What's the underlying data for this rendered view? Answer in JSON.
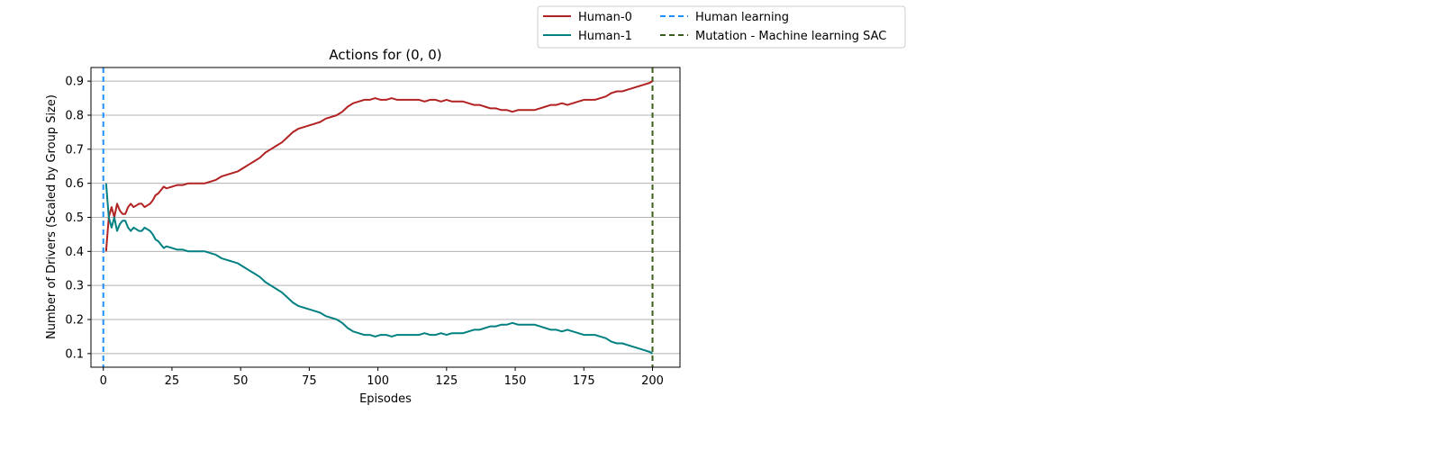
{
  "chart_data": {
    "type": "line",
    "title": "Actions for (0, 0)",
    "xlabel": "Episodes",
    "ylabel": "Number of Drivers (Scaled by Group Size)",
    "xlim": [
      -4.5,
      210
    ],
    "ylim": [
      0.06,
      0.94
    ],
    "xticks": [
      0,
      25,
      50,
      75,
      100,
      125,
      150,
      175,
      200
    ],
    "yticks": [
      0.1,
      0.2,
      0.3,
      0.4,
      0.5,
      0.6,
      0.7,
      0.8,
      0.9
    ],
    "grid": "horizontal",
    "legend_position": "above-right",
    "series": [
      {
        "name": "Human-0",
        "color": "#b22222",
        "style": "solid",
        "x": [
          1,
          2,
          3,
          4,
          5,
          6,
          7,
          8,
          9,
          10,
          11,
          12,
          13,
          14,
          15,
          16,
          17,
          18,
          19,
          20,
          21,
          22,
          23,
          25,
          27,
          29,
          31,
          33,
          35,
          37,
          39,
          41,
          43,
          45,
          47,
          49,
          51,
          53,
          55,
          57,
          59,
          61,
          63,
          65,
          67,
          69,
          71,
          73,
          75,
          77,
          79,
          81,
          83,
          85,
          87,
          89,
          91,
          93,
          95,
          97,
          99,
          101,
          103,
          105,
          107,
          109,
          111,
          113,
          115,
          117,
          119,
          121,
          123,
          125,
          127,
          129,
          131,
          133,
          135,
          137,
          139,
          141,
          143,
          145,
          147,
          149,
          151,
          153,
          155,
          157,
          159,
          161,
          163,
          165,
          167,
          169,
          171,
          173,
          175,
          177,
          179,
          181,
          183,
          185,
          187,
          189,
          191,
          193,
          195,
          197,
          199,
          200
        ],
        "y": [
          0.4,
          0.5,
          0.53,
          0.5,
          0.54,
          0.52,
          0.51,
          0.51,
          0.53,
          0.54,
          0.53,
          0.535,
          0.54,
          0.54,
          0.53,
          0.535,
          0.54,
          0.55,
          0.565,
          0.57,
          0.58,
          0.59,
          0.585,
          0.59,
          0.595,
          0.595,
          0.6,
          0.6,
          0.6,
          0.6,
          0.605,
          0.61,
          0.62,
          0.625,
          0.63,
          0.635,
          0.645,
          0.655,
          0.665,
          0.675,
          0.69,
          0.7,
          0.71,
          0.72,
          0.735,
          0.75,
          0.76,
          0.765,
          0.77,
          0.775,
          0.78,
          0.79,
          0.795,
          0.8,
          0.81,
          0.825,
          0.835,
          0.84,
          0.845,
          0.845,
          0.85,
          0.845,
          0.845,
          0.85,
          0.845,
          0.845,
          0.845,
          0.845,
          0.845,
          0.84,
          0.845,
          0.845,
          0.84,
          0.845,
          0.84,
          0.84,
          0.84,
          0.835,
          0.83,
          0.83,
          0.825,
          0.82,
          0.82,
          0.815,
          0.815,
          0.81,
          0.815,
          0.815,
          0.815,
          0.815,
          0.82,
          0.825,
          0.83,
          0.83,
          0.835,
          0.83,
          0.835,
          0.84,
          0.845,
          0.845,
          0.845,
          0.85,
          0.855,
          0.865,
          0.87,
          0.87,
          0.875,
          0.88,
          0.885,
          0.89,
          0.895,
          0.9
        ]
      },
      {
        "name": "Human-1",
        "color": "#008080",
        "style": "solid",
        "x": [
          1,
          2,
          3,
          4,
          5,
          6,
          7,
          8,
          9,
          10,
          11,
          12,
          13,
          14,
          15,
          16,
          17,
          18,
          19,
          20,
          21,
          22,
          23,
          25,
          27,
          29,
          31,
          33,
          35,
          37,
          39,
          41,
          43,
          45,
          47,
          49,
          51,
          53,
          55,
          57,
          59,
          61,
          63,
          65,
          67,
          69,
          71,
          73,
          75,
          77,
          79,
          81,
          83,
          85,
          87,
          89,
          91,
          93,
          95,
          97,
          99,
          101,
          103,
          105,
          107,
          109,
          111,
          113,
          115,
          117,
          119,
          121,
          123,
          125,
          127,
          129,
          131,
          133,
          135,
          137,
          139,
          141,
          143,
          145,
          147,
          149,
          151,
          153,
          155,
          157,
          159,
          161,
          163,
          165,
          167,
          169,
          171,
          173,
          175,
          177,
          179,
          181,
          183,
          185,
          187,
          189,
          191,
          193,
          195,
          197,
          199,
          200
        ],
        "y": [
          0.6,
          0.5,
          0.47,
          0.5,
          0.46,
          0.48,
          0.49,
          0.49,
          0.47,
          0.46,
          0.47,
          0.465,
          0.46,
          0.46,
          0.47,
          0.465,
          0.46,
          0.45,
          0.435,
          0.43,
          0.42,
          0.41,
          0.415,
          0.41,
          0.405,
          0.405,
          0.4,
          0.4,
          0.4,
          0.4,
          0.395,
          0.39,
          0.38,
          0.375,
          0.37,
          0.365,
          0.355,
          0.345,
          0.335,
          0.325,
          0.31,
          0.3,
          0.29,
          0.28,
          0.265,
          0.25,
          0.24,
          0.235,
          0.23,
          0.225,
          0.22,
          0.21,
          0.205,
          0.2,
          0.19,
          0.175,
          0.165,
          0.16,
          0.155,
          0.155,
          0.15,
          0.155,
          0.155,
          0.15,
          0.155,
          0.155,
          0.155,
          0.155,
          0.155,
          0.16,
          0.155,
          0.155,
          0.16,
          0.155,
          0.16,
          0.16,
          0.16,
          0.165,
          0.17,
          0.17,
          0.175,
          0.18,
          0.18,
          0.185,
          0.185,
          0.19,
          0.185,
          0.185,
          0.185,
          0.185,
          0.18,
          0.175,
          0.17,
          0.17,
          0.165,
          0.17,
          0.165,
          0.16,
          0.155,
          0.155,
          0.155,
          0.15,
          0.145,
          0.135,
          0.13,
          0.13,
          0.125,
          0.12,
          0.115,
          0.11,
          0.105,
          0.1
        ]
      }
    ],
    "vlines": [
      {
        "name": "Human learning",
        "x": 0,
        "color": "#1e90ff",
        "style": "dashed"
      },
      {
        "name": "Mutation - Machine learning SAC",
        "x": 200,
        "color": "#3b5e1a",
        "style": "dashed"
      }
    ]
  }
}
